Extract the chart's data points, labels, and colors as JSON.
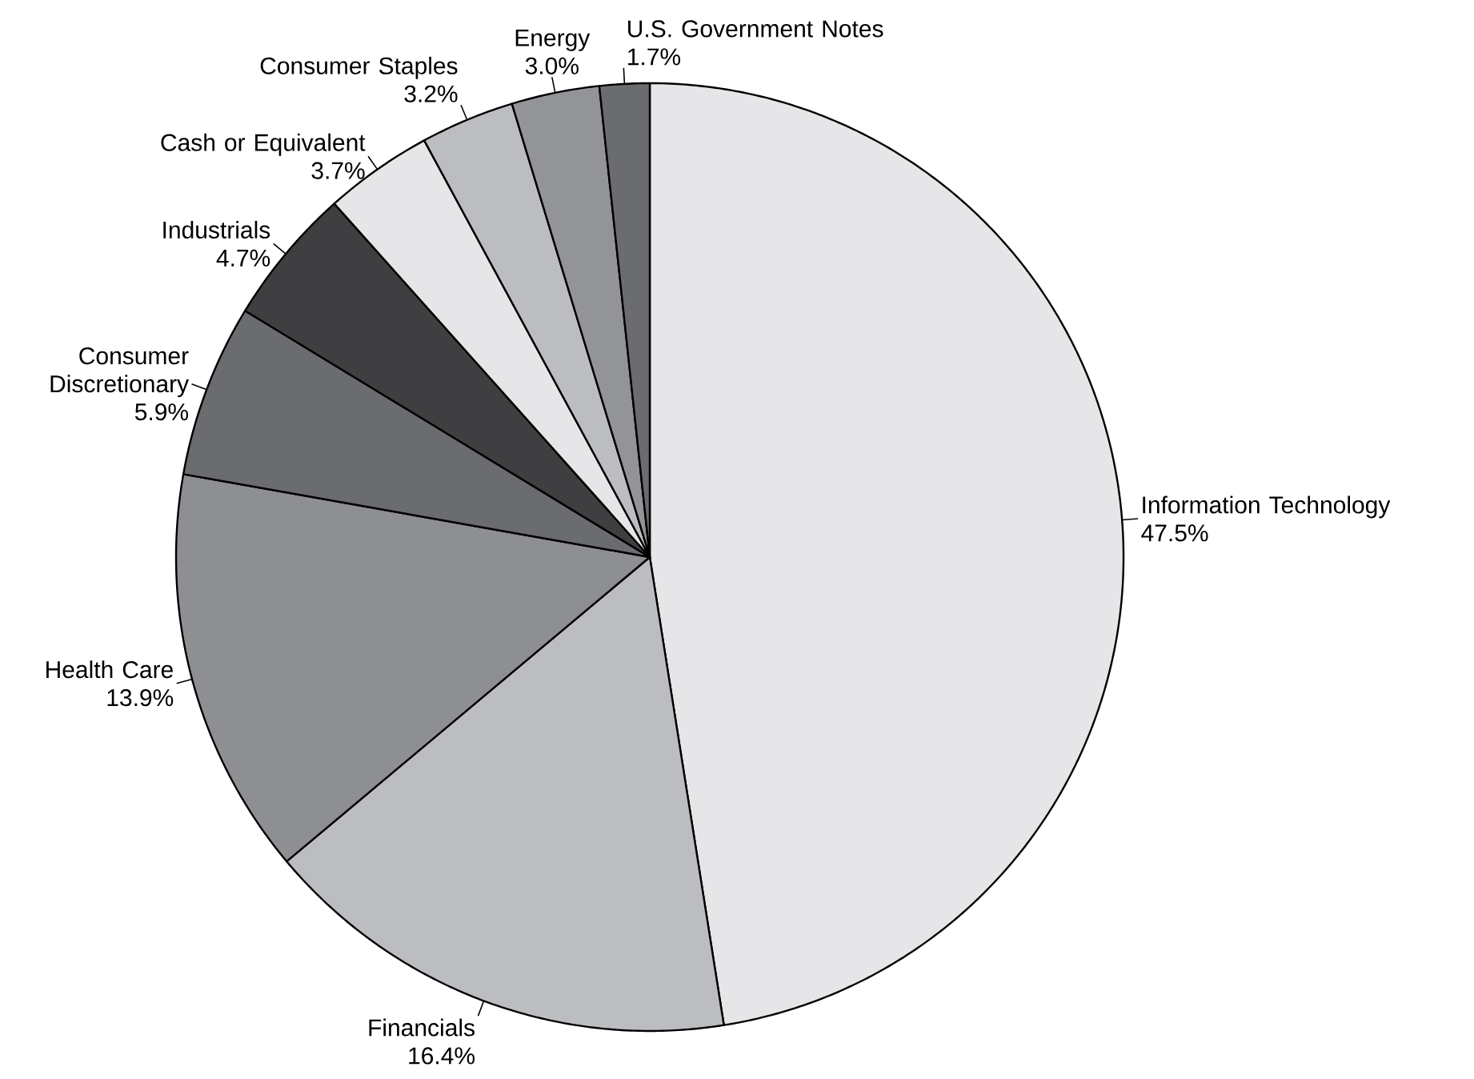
{
  "chart_data": {
    "type": "pie",
    "categories": [
      "Information Technology",
      "Financials",
      "Health Care",
      "Consumer Discretionary",
      "Industrials",
      "Cash or Equivalent",
      "Consumer Staples",
      "Energy",
      "U.S. Government Notes"
    ],
    "values": [
      47.5,
      16.4,
      13.9,
      5.9,
      4.7,
      3.7,
      3.2,
      3.0,
      1.7
    ],
    "value_labels": [
      "47.5%",
      "16.4%",
      "13.9%",
      "5.9%",
      "4.7%",
      "3.7%",
      "3.2%",
      "3.0%",
      "1.7%"
    ],
    "colors": [
      "#e6e6e8",
      "#bcbdc0",
      "#8e8f92",
      "#6b6c6f",
      "#3f3f41",
      "#e6e6e8",
      "#bcbdc0",
      "#939497",
      "#6b6c6f"
    ]
  }
}
